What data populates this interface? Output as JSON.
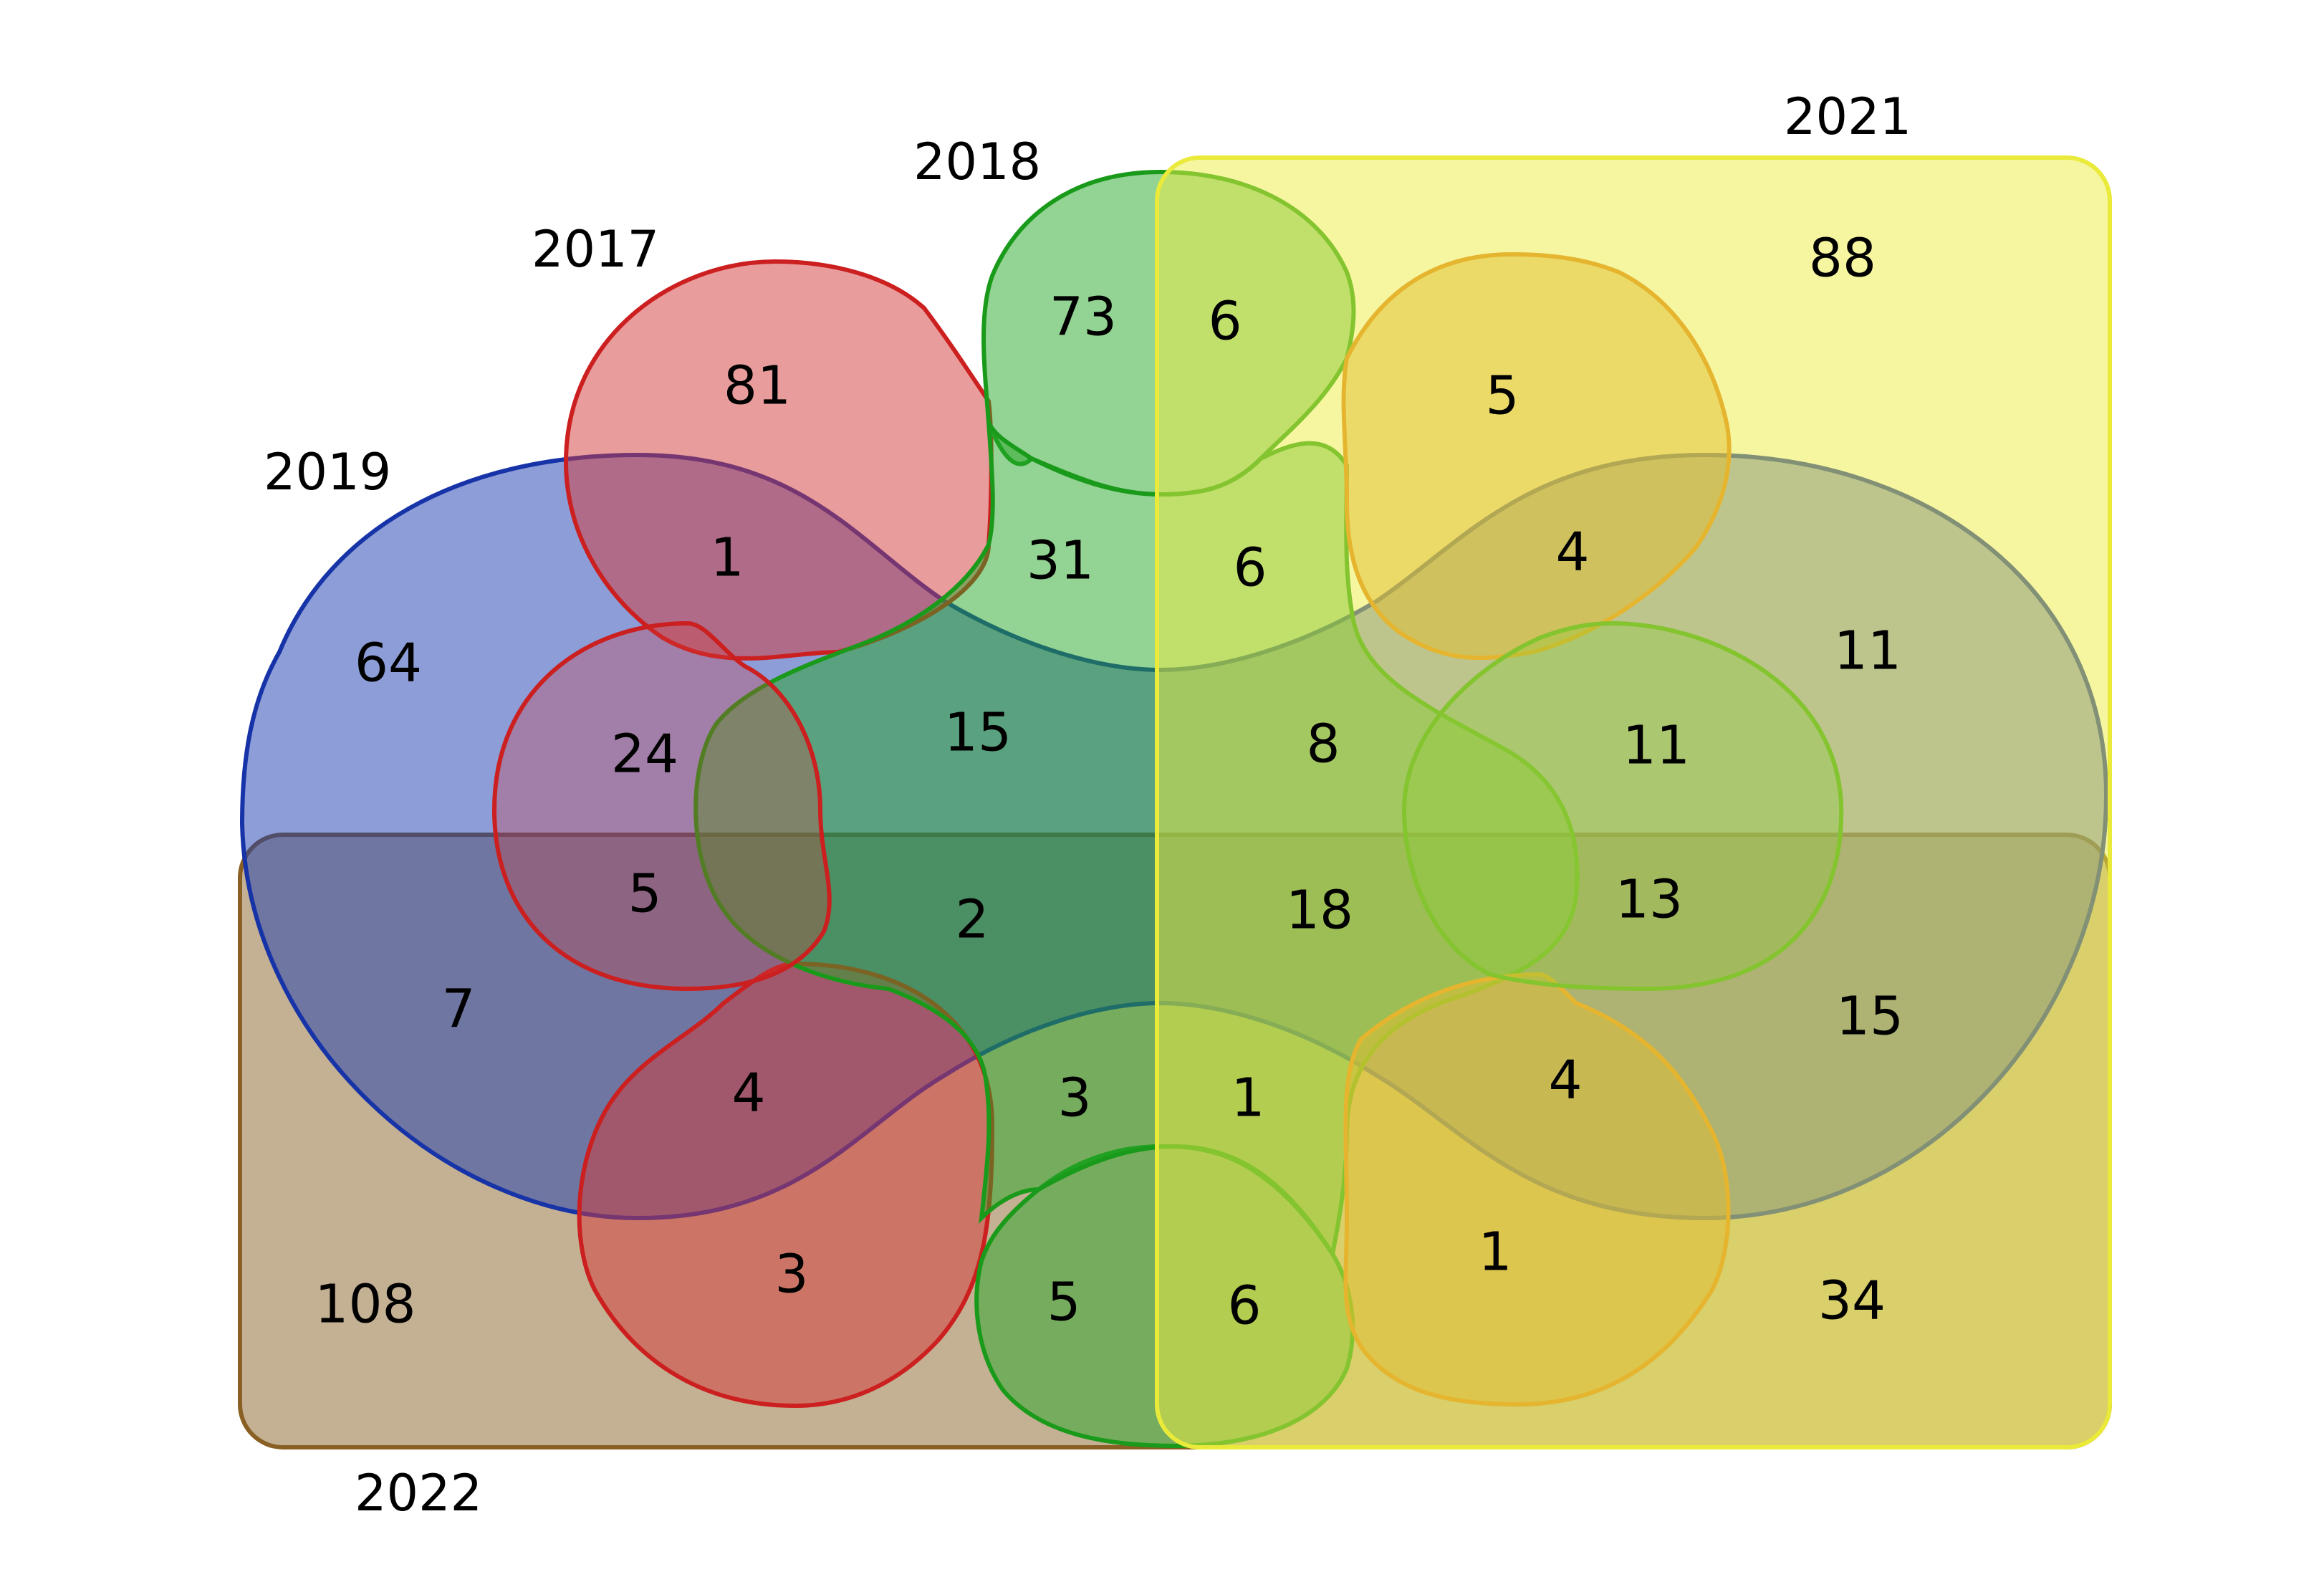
{
  "sets": [
    {
      "key": "s2017",
      "label": "2017",
      "fill": "#d43a3a",
      "stroke": "#cc1f1f"
    },
    {
      "key": "s2018",
      "label": "2018",
      "fill": "#27a827",
      "stroke": "#1a9a1a"
    },
    {
      "key": "s2019",
      "label": "2019",
      "fill": "#1a3bb0",
      "stroke": "#1733a8"
    },
    {
      "key": "s2020",
      "label": "",
      "fill": "#d68e1c",
      "stroke": "#dd7d1a"
    },
    {
      "key": "s2021",
      "label": "2021",
      "fill": "#eeee44",
      "stroke": "#eaea3a"
    },
    {
      "key": "s2022",
      "label": "2022",
      "fill": "#8a6127",
      "stroke": "#8a5f23"
    }
  ],
  "regions": {
    "r_2017": "81",
    "r_2018": "73",
    "r_2018_2021": "6",
    "r_2021": "88",
    "r_2020_2021": "5",
    "r_2017_2019": "1",
    "r_2017_2018_2019": "31",
    "r_2018_2019_2021": "6",
    "r_2019_2020_2021": "4",
    "r_2019": "64",
    "r_2019_2021": "11",
    "r_a": "24",
    "r_b": "15",
    "r_c": "8",
    "r_d": "11",
    "r_e": "5",
    "r_f": "2",
    "r_g": "18",
    "r_h": "13",
    "r_2019_2022": "7",
    "r_2019_2021_2022": "15",
    "r_i": "4",
    "r_j": "3",
    "r_k": "1",
    "r_l": "4",
    "r_2022": "108",
    "r_2017_2022": "3",
    "r_2018_2022": "5",
    "r_2018_2021_2022": "6",
    "r_2020_2021_2022": "1",
    "r_2021_2022": "34"
  }
}
